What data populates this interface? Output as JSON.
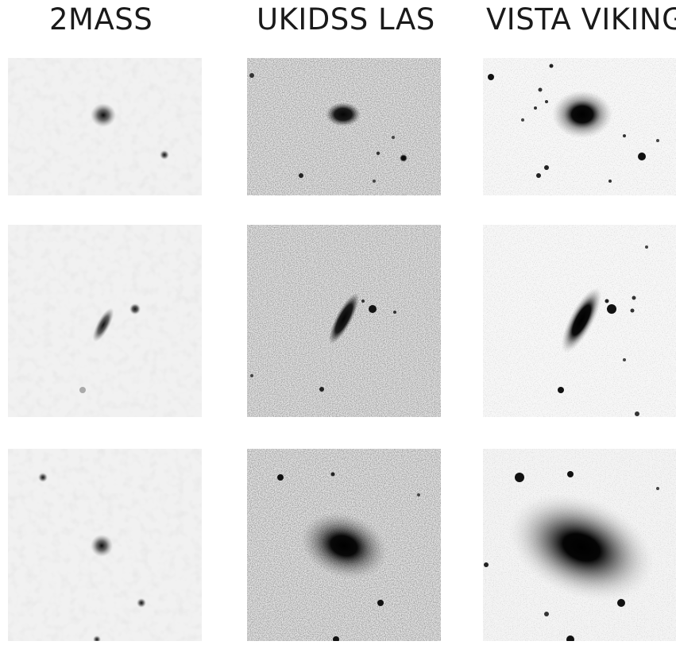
{
  "columns": [
    {
      "title": "2MASS"
    },
    {
      "title": "UKIDSS LAS"
    },
    {
      "title": "VISTA VIKING"
    }
  ],
  "rows": [
    {
      "panels": [
        {
          "survey": "2MASS",
          "noise": "heavy-blurred",
          "galaxy": "faint-compact"
        },
        {
          "survey": "UKIDSS LAS",
          "noise": "grainy",
          "galaxy": "compact-elliptical"
        },
        {
          "survey": "VISTA VIKING",
          "noise": "light",
          "galaxy": "compact-elliptical-halo"
        }
      ]
    },
    {
      "panels": [
        {
          "survey": "2MASS",
          "noise": "heavy-blurred",
          "galaxy": "faint-edge-on"
        },
        {
          "survey": "UKIDSS LAS",
          "noise": "grainy",
          "galaxy": "edge-on-disk"
        },
        {
          "survey": "VISTA VIKING",
          "noise": "light",
          "galaxy": "edge-on-disk-halo"
        }
      ]
    },
    {
      "panels": [
        {
          "survey": "2MASS",
          "noise": "heavy-blurred",
          "galaxy": "faint-compact"
        },
        {
          "survey": "UKIDSS LAS",
          "noise": "grainy",
          "galaxy": "elliptical-halo"
        },
        {
          "survey": "VISTA VIKING",
          "noise": "light",
          "galaxy": "large-elliptical-halo"
        }
      ]
    }
  ],
  "colors": {
    "background": "#ffffff",
    "title_text": "#1a1a1a",
    "source": "#0a0a0a"
  }
}
